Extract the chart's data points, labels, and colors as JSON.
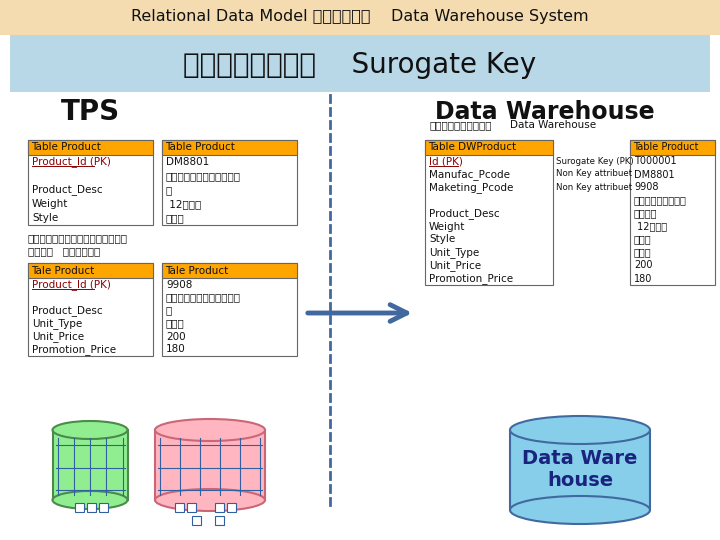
{
  "title_top": "Relational Data Model สำหรับ    Data Warehouse System",
  "title_sub": "การสร้าง    Surogate Key",
  "bg_top_color": "#f5dcb0",
  "bg_sub_color": "#b8d8e8",
  "tps_label": "TPS",
  "dw_label": "Data Warehouse",
  "header_color": "#ffa500",
  "pk_color": "#8b0000",
  "arrow_color": "#4169a0",
  "div_color": "#4169a0",
  "t1_header": "Table Product",
  "t1_rows": [
    "Product_Id (PK)",
    "",
    "Product_Desc",
    "Weight",
    "Style"
  ],
  "t2_header": "Table Product",
  "t2_rows": [
    "DM8801",
    "แกวนำสำหรบเด",
    "ก",
    " 12กรม",
    "คลส"
  ],
  "note1": "ขอมลสนคาประเภทเด",
  "note2": "ยากน   ฝายขาย",
  "t3_header": "Tale Product",
  "t3_rows": [
    "Product_Id (PK)",
    "",
    "Product_Desc",
    "Unit_Type",
    "Unit_Price",
    "Promotion_Price"
  ],
  "t4_header": "Tale Product",
  "t4_rows": [
    "9908",
    "แกวนำสำหรบเด",
    "ก",
    "โหล",
    "200",
    "180"
  ],
  "dw_note1": "ขอมลสนคาใน",
  "dw_note2": "Data Warehouse",
  "dw_t1_header": "Table DWProduct",
  "dw_t1_rows": [
    "Id (PK)",
    "Manufac_Pcode",
    "Maketing_Pcode",
    "",
    "Product_Desc",
    "Weight",
    "Style",
    "Unit_Type",
    "Unit_Price",
    "Promotion_Price"
  ],
  "dw_attrs": [
    "Surogate Key (PK)",
    "Non Key attribuet",
    "Non Key attribuet"
  ],
  "dw_t2_header": "Table Product",
  "dw_t2_rows": [
    "T000001",
    "DM8801",
    "9908",
    "แกวนำสำหร",
    "บเดก",
    " 12กรม",
    "คลส",
    "โหล",
    "200",
    "180"
  ],
  "dw_cyl_text": "Data Ware\nhouse",
  "green_cyl_color": "#90ee90",
  "green_cyl_edge": "#4a8a4a",
  "pink_cyl_color": "#ffb6c1",
  "pink_cyl_edge": "#cc6677",
  "blue_cyl_color": "#87ceeb",
  "blue_cyl_edge": "#4169a0",
  "grid_color": "#3060a0"
}
